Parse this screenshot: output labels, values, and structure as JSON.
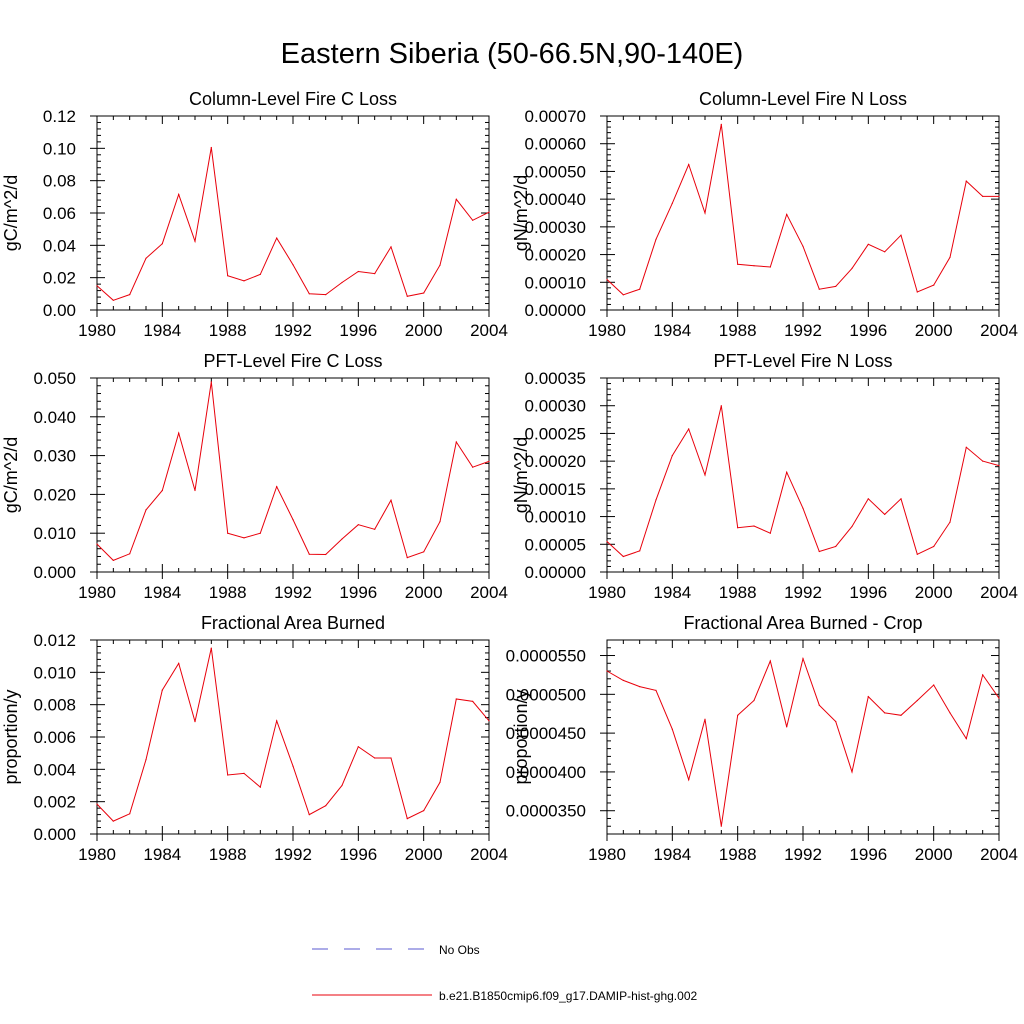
{
  "figure_title": "Eastern Siberia (50-66.5N,90-140E)",
  "line_color": "#e8000b",
  "obs_color": "#5a5ad0",
  "legend": {
    "no_obs": "No Obs",
    "model": "b.e21.B1850cmip6.f09_g17.DAMIP-hist-ghg.002"
  },
  "chart_data": [
    {
      "type": "line",
      "title": "Column-Level Fire C Loss",
      "ylabel": "gC/m^2/d",
      "xlim": [
        1980,
        2004
      ],
      "ylim": [
        0,
        0.12
      ],
      "xticks": [
        "1980",
        "1984",
        "1988",
        "1992",
        "1996",
        "2000",
        "2004"
      ],
      "yticks": [
        "0.00",
        "0.02",
        "0.04",
        "0.06",
        "0.08",
        "0.10",
        "0.12"
      ],
      "series": [
        {
          "name": "b.e21.B1850cmip6.f09_g17.DAMIP-hist-ghg.002",
          "x": [
            1980,
            1981,
            1982,
            1983,
            1984,
            1985,
            1986,
            1987,
            1988,
            1989,
            1990,
            1991,
            1992,
            1993,
            1994,
            1995,
            1996,
            1997,
            1998,
            1999,
            2000,
            2001,
            2002,
            2003,
            2004
          ],
          "values": [
            0.015,
            0.006,
            0.0095,
            0.032,
            0.041,
            0.0715,
            0.0425,
            0.1005,
            0.0212,
            0.018,
            0.022,
            0.0445,
            0.028,
            0.01,
            0.0095,
            0.017,
            0.0238,
            0.0225,
            0.039,
            0.0085,
            0.0105,
            0.0278,
            0.0685,
            0.0555,
            0.0605
          ]
        }
      ]
    },
    {
      "type": "line",
      "title": "Column-Level Fire N Loss",
      "ylabel": "gN/m^2/d",
      "xlim": [
        1980,
        2004
      ],
      "ylim": [
        0,
        0.0007
      ],
      "xticks": [
        "1980",
        "1984",
        "1988",
        "1992",
        "1996",
        "2000",
        "2004"
      ],
      "yticks": [
        "0.00000",
        "0.00010",
        "0.00020",
        "0.00030",
        "0.00040",
        "0.00050",
        "0.00060",
        "0.00070"
      ],
      "series": [
        {
          "name": "b.e21.B1850cmip6.f09_g17.DAMIP-hist-ghg.002",
          "x": [
            1980,
            1981,
            1982,
            1983,
            1984,
            1985,
            1986,
            1987,
            1988,
            1989,
            1990,
            1991,
            1992,
            1993,
            1994,
            1995,
            1996,
            1997,
            1998,
            1999,
            2000,
            2001,
            2002,
            2003,
            2004
          ],
          "values": [
            0.00011,
            5.5e-05,
            7.5e-05,
            0.000255,
            0.000385,
            0.000525,
            0.00035,
            0.00067,
            0.000165,
            0.00016,
            0.000155,
            0.000345,
            0.00023,
            7.5e-05,
            8.5e-05,
            0.00015,
            0.000237,
            0.00021,
            0.00027,
            6.5e-05,
            9e-05,
            0.00019,
            0.000465,
            0.00041,
            0.00041
          ]
        }
      ]
    },
    {
      "type": "line",
      "title": "PFT-Level Fire C Loss",
      "ylabel": "gC/m^2/d",
      "xlim": [
        1980,
        2004
      ],
      "ylim": [
        0,
        0.05
      ],
      "xticks": [
        "1980",
        "1984",
        "1988",
        "1992",
        "1996",
        "2000",
        "2004"
      ],
      "yticks": [
        "0.000",
        "0.010",
        "0.020",
        "0.030",
        "0.040",
        "0.050"
      ],
      "series": [
        {
          "name": "b.e21.B1850cmip6.f09_g17.DAMIP-hist-ghg.002",
          "x": [
            1980,
            1981,
            1982,
            1983,
            1984,
            1985,
            1986,
            1987,
            1988,
            1989,
            1990,
            1991,
            1992,
            1993,
            1994,
            1995,
            1996,
            1997,
            1998,
            1999,
            2000,
            2001,
            2002,
            2003,
            2004
          ],
          "values": [
            0.0072,
            0.003,
            0.0047,
            0.016,
            0.021,
            0.0358,
            0.021,
            0.049,
            0.01,
            0.0088,
            0.01,
            0.022,
            0.0135,
            0.0046,
            0.0045,
            0.0085,
            0.0122,
            0.011,
            0.0185,
            0.0037,
            0.0052,
            0.013,
            0.0335,
            0.027,
            0.0285
          ]
        }
      ]
    },
    {
      "type": "line",
      "title": "PFT-Level Fire N Loss",
      "ylabel": "gN/m^2/d",
      "xlim": [
        1980,
        2004
      ],
      "ylim": [
        0,
        0.00035
      ],
      "xticks": [
        "1980",
        "1984",
        "1988",
        "1992",
        "1996",
        "2000",
        "2004"
      ],
      "yticks": [
        "0.00000",
        "0.00005",
        "0.00010",
        "0.00015",
        "0.00020",
        "0.00025",
        "0.00030",
        "0.00035"
      ],
      "series": [
        {
          "name": "b.e21.B1850cmip6.f09_g17.DAMIP-hist-ghg.002",
          "x": [
            1980,
            1981,
            1982,
            1983,
            1984,
            1985,
            1986,
            1987,
            1988,
            1989,
            1990,
            1991,
            1992,
            1993,
            1994,
            1995,
            1996,
            1997,
            1998,
            1999,
            2000,
            2001,
            2002,
            2003,
            2004
          ],
          "values": [
            5.5e-05,
            2.8e-05,
            3.8e-05,
            0.00013,
            0.00021,
            0.000258,
            0.000175,
            0.0003,
            8e-05,
            8.3e-05,
            7e-05,
            0.00018,
            0.000115,
            3.7e-05,
            4.6e-05,
            8.2e-05,
            0.000132,
            0.000104,
            0.000132,
            3.2e-05,
            4.6e-05,
            9e-05,
            0.000225,
            0.0002,
            0.000192
          ]
        }
      ]
    },
    {
      "type": "line",
      "title": "Fractional Area Burned",
      "ylabel": "proportion/y",
      "xlim": [
        1980,
        2004
      ],
      "ylim": [
        0,
        0.012
      ],
      "xticks": [
        "1980",
        "1984",
        "1988",
        "1992",
        "1996",
        "2000",
        "2004"
      ],
      "yticks": [
        "0.000",
        "0.002",
        "0.004",
        "0.006",
        "0.008",
        "0.010",
        "0.012"
      ],
      "series": [
        {
          "name": "b.e21.B1850cmip6.f09_g17.DAMIP-hist-ghg.002",
          "x": [
            1980,
            1981,
            1982,
            1983,
            1984,
            1985,
            1986,
            1987,
            1988,
            1989,
            1990,
            1991,
            1992,
            1993,
            1994,
            1995,
            1996,
            1997,
            1998,
            1999,
            2000,
            2001,
            2002,
            2003,
            2004
          ],
          "values": [
            0.00185,
            0.0008,
            0.00125,
            0.0046,
            0.0089,
            0.01055,
            0.00695,
            0.0115,
            0.00365,
            0.00375,
            0.0029,
            0.007,
            0.0042,
            0.0012,
            0.00175,
            0.003,
            0.0054,
            0.0047,
            0.0047,
            0.00095,
            0.00145,
            0.0032,
            0.00835,
            0.0082,
            0.007
          ]
        }
      ]
    },
    {
      "type": "line",
      "title": "Fractional Area Burned - Crop",
      "ylabel": "proportion/y",
      "xlim": [
        1980,
        2004
      ],
      "ylim": [
        3.2e-05,
        5.7e-05
      ],
      "xticks": [
        "1980",
        "1984",
        "1988",
        "1992",
        "1996",
        "2000",
        "2004"
      ],
      "yticks": [
        "0.0000350",
        "0.0000400",
        "0.0000450",
        "0.0000500",
        "0.0000550"
      ],
      "ytick_values": [
        3.5e-05,
        4e-05,
        4.5e-05,
        5e-05,
        5.5e-05
      ],
      "series": [
        {
          "name": "b.e21.B1850cmip6.f09_g17.DAMIP-hist-ghg.002",
          "x": [
            1980,
            1981,
            1982,
            1983,
            1984,
            1985,
            1986,
            1987,
            1988,
            1989,
            1990,
            1991,
            1992,
            1993,
            1994,
            1995,
            1996,
            1997,
            1998,
            1999,
            2000,
            2001,
            2002,
            2003,
            2004
          ],
          "values": [
            5.3e-05,
            5.18e-05,
            5.1e-05,
            5.05e-05,
            4.55e-05,
            3.9e-05,
            4.68e-05,
            3.3e-05,
            4.73e-05,
            4.92e-05,
            5.43e-05,
            4.58e-05,
            5.46e-05,
            4.86e-05,
            4.65e-05,
            4e-05,
            4.97e-05,
            4.76e-05,
            4.73e-05,
            4.92e-05,
            5.12e-05,
            4.76e-05,
            4.43e-05,
            5.25e-05,
            4.95e-05
          ]
        }
      ]
    }
  ]
}
